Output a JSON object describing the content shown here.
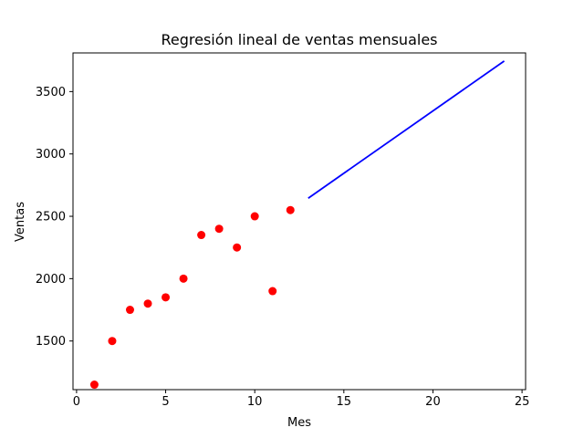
{
  "chart_data": {
    "type": "scatter",
    "title": "Regresión lineal de ventas mensuales",
    "xlabel": "Mes",
    "ylabel": "Ventas",
    "xlim": [
      -0.2,
      25.2
    ],
    "ylim": [
      1110,
      3810
    ],
    "x_ticks": [
      0,
      5,
      10,
      15,
      20,
      25
    ],
    "y_ticks": [
      1500,
      2000,
      2500,
      3000,
      3500
    ],
    "grid": false,
    "legend": false,
    "series": [
      {
        "kind": "scatter",
        "color": "#ff0000",
        "points": [
          {
            "x": 1,
            "y": 1150
          },
          {
            "x": 2,
            "y": 1500
          },
          {
            "x": 3,
            "y": 1750
          },
          {
            "x": 4,
            "y": 1800
          },
          {
            "x": 5,
            "y": 1850
          },
          {
            "x": 6,
            "y": 2000
          },
          {
            "x": 7,
            "y": 2350
          },
          {
            "x": 8,
            "y": 2400
          },
          {
            "x": 9,
            "y": 2250
          },
          {
            "x": 10,
            "y": 2500
          },
          {
            "x": 11,
            "y": 1900
          },
          {
            "x": 12,
            "y": 2550
          }
        ]
      },
      {
        "kind": "line",
        "color": "#0000ff",
        "points": [
          {
            "x": 13,
            "y": 2645
          },
          {
            "x": 24,
            "y": 3745
          }
        ]
      }
    ]
  }
}
